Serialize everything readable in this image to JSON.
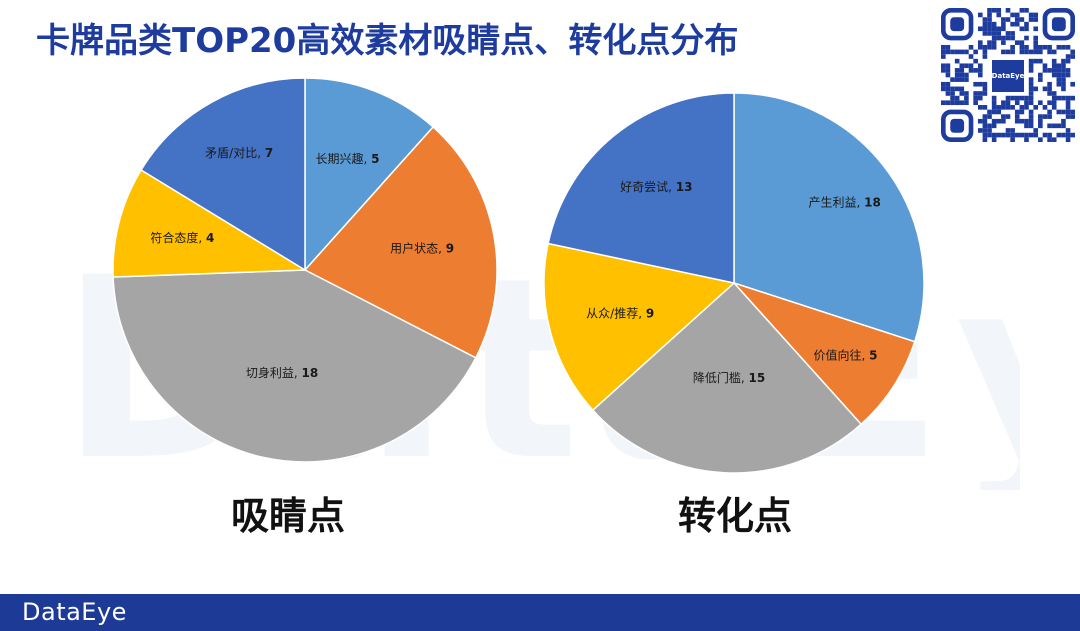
{
  "title": "卡牌品类TOP20高效素材吸睛点、转化点分布",
  "watermark": "DataEye",
  "qr_logo_text": "DataEye",
  "footer": {
    "brand": "DataEye"
  },
  "colors": {
    "title": "#1e3c9e",
    "footer_bg": "#1d3a96",
    "series_light_blue": "#5b9bd5",
    "series_orange": "#ed7d31",
    "series_gray": "#a5a5a5",
    "series_yellow": "#ffc000",
    "series_blue": "#4472c4"
  },
  "chart_data": [
    {
      "type": "pie",
      "title": "吸睛点",
      "slices": [
        {
          "label": "长期兴趣",
          "value": 5,
          "color": "#5b9bd5"
        },
        {
          "label": "用户状态",
          "value": 9,
          "color": "#ed7d31"
        },
        {
          "label": "切身利益",
          "value": 18,
          "color": "#a5a5a5"
        },
        {
          "label": "符合态度",
          "value": 4,
          "color": "#ffc000"
        },
        {
          "label": "矛盾/对比",
          "value": 7,
          "color": "#4472c4"
        }
      ]
    },
    {
      "type": "pie",
      "title": "转化点",
      "slices": [
        {
          "label": "产生利益",
          "value": 18,
          "color": "#5b9bd5"
        },
        {
          "label": "价值向往",
          "value": 5,
          "color": "#ed7d31"
        },
        {
          "label": "降低门槛",
          "value": 15,
          "color": "#a5a5a5"
        },
        {
          "label": "从众/推荐",
          "value": 9,
          "color": "#ffc000"
        },
        {
          "label": "好奇尝试",
          "value": 13,
          "color": "#4472c4"
        }
      ]
    }
  ]
}
